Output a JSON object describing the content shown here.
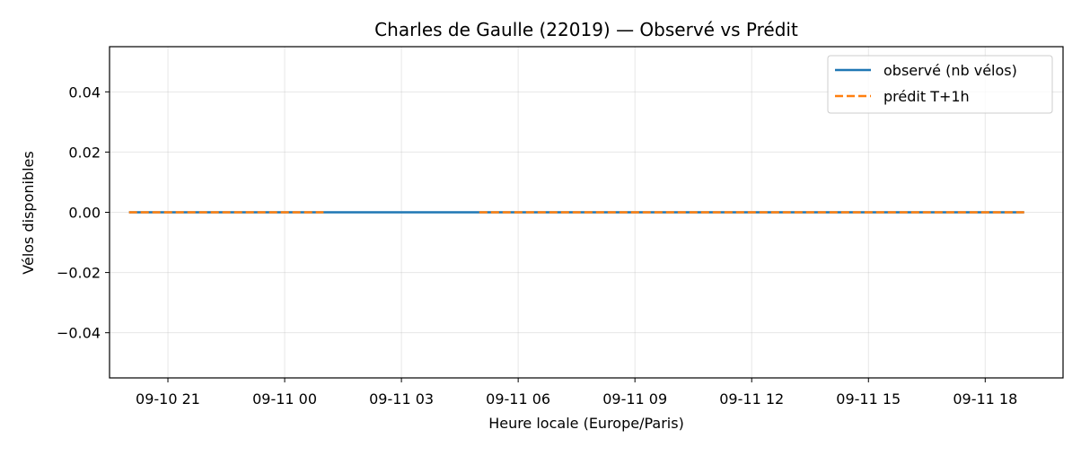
{
  "chart_data": {
    "type": "line",
    "title": "Charles de Gaulle (22019) — Observé vs Prédit",
    "xlabel": "Heure locale (Europe/Paris)",
    "ylabel": "Vélos disponibles",
    "ylim": [
      -0.055,
      0.055
    ],
    "yticks": [
      {
        "value": 0.04,
        "label": "0.04"
      },
      {
        "value": 0.02,
        "label": "0.02"
      },
      {
        "value": 0.0,
        "label": "0.00"
      },
      {
        "value": -0.02,
        "label": "−0.02"
      },
      {
        "value": -0.04,
        "label": "−0.04"
      }
    ],
    "xlim": [
      "2025-09-10T19:30",
      "2025-09-11T20:00"
    ],
    "xticks": [
      {
        "value": "2025-09-10T21:00",
        "label": "09-10 21"
      },
      {
        "value": "2025-09-11T00:00",
        "label": "09-11 00"
      },
      {
        "value": "2025-09-11T03:00",
        "label": "09-11 03"
      },
      {
        "value": "2025-09-11T06:00",
        "label": "09-11 06"
      },
      {
        "value": "2025-09-11T09:00",
        "label": "09-11 09"
      },
      {
        "value": "2025-09-11T12:00",
        "label": "09-11 12"
      },
      {
        "value": "2025-09-11T15:00",
        "label": "09-11 15"
      },
      {
        "value": "2025-09-11T18:00",
        "label": "09-11 18"
      }
    ],
    "grid": true,
    "legend_position": "top-right",
    "series": [
      {
        "name": "observé (nb vélos)",
        "color": "#1f77b4",
        "style": "solid",
        "segments": [
          [
            [
              "2025-09-10T20:00",
              0
            ],
            [
              "2025-09-11T19:00",
              0
            ]
          ]
        ]
      },
      {
        "name": "prédit T+1h",
        "color": "#ff7f0e",
        "style": "dashed",
        "segments": [
          [
            [
              "2025-09-10T20:00",
              0
            ],
            [
              "2025-09-11T01:00",
              0
            ]
          ],
          [
            [
              "2025-09-11T05:00",
              0
            ],
            [
              "2025-09-11T19:00",
              0
            ]
          ]
        ]
      }
    ]
  }
}
